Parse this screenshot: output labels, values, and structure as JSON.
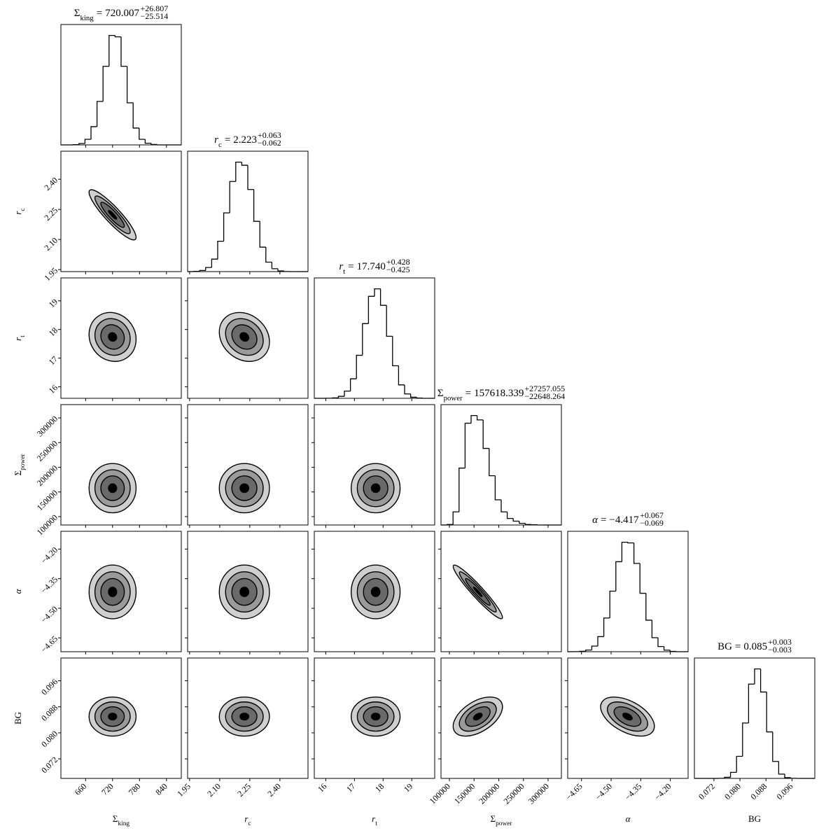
{
  "chart_data": {
    "type": "corner",
    "equals": "=",
    "parameters": [
      {
        "label": "Σ",
        "label_sub": "king",
        "median": 720.007,
        "err_plus": 26.807,
        "err_plus_label": "+26.807",
        "err_minus": 25.514,
        "err_minus_label": "−25.514",
        "lim": [
          605,
          873
        ],
        "ticks": [
          660,
          720,
          780,
          840
        ],
        "bins": [
          605,
          618.4,
          631.8,
          645.2,
          658.6,
          672,
          685.4,
          698.8,
          712.2,
          725.6,
          739,
          752.4,
          765.8,
          779.2,
          792.6,
          806,
          819.4,
          832.8,
          846.2,
          859.6,
          873
        ],
        "counts": [
          0,
          0,
          2,
          10,
          40,
          130,
          310,
          560,
          780,
          770,
          560,
          300,
          120,
          40,
          12,
          3,
          0,
          0,
          0,
          0
        ]
      },
      {
        "label": "r",
        "label_sub": "c",
        "italic": true,
        "median": 2.223,
        "err_plus": 0.063,
        "err_plus_label": "+0.063",
        "err_minus": 0.062,
        "err_minus_label": "−0.062",
        "lim": [
          1.94,
          2.54
        ],
        "ticks": [
          1.95,
          {
            "value": 2.1,
            "label": "2.10"
          },
          2.25,
          {
            "value": 2.4,
            "label": "2.40"
          }
        ],
        "bins": [
          1.94,
          1.97,
          2.0,
          2.03,
          2.06,
          2.09,
          2.12,
          2.15,
          2.18,
          2.21,
          2.24,
          2.27,
          2.3,
          2.33,
          2.36,
          2.39,
          2.42,
          2.45,
          2.48,
          2.51,
          2.54
        ],
        "counts": [
          0,
          2,
          10,
          37,
          112,
          273,
          528,
          810,
          984,
          956,
          738,
          452,
          220,
          85,
          26,
          6,
          1,
          0,
          0,
          0
        ]
      },
      {
        "label": "r",
        "label_sub": "t",
        "italic": true,
        "median": 17.74,
        "median_label": "17.740",
        "err_plus": 0.428,
        "err_plus_label": "+0.428",
        "err_minus": 0.425,
        "err_minus_label": "−0.425",
        "lim": [
          15.6,
          19.8
        ],
        "ticks": [
          16,
          17,
          18,
          19
        ],
        "bins": [
          15.6,
          15.81,
          16.02,
          16.23,
          16.44,
          16.65,
          16.86,
          17.07,
          17.28,
          17.49,
          17.7,
          17.91,
          18.12,
          18.33,
          18.54,
          18.75,
          18.96,
          19.17,
          19.38,
          19.59,
          19.8
        ],
        "counts": [
          0,
          0,
          1,
          4,
          18,
          65,
          177,
          391,
          679,
          927,
          995,
          845,
          564,
          296,
          122,
          40,
          10,
          2,
          0,
          0
        ]
      },
      {
        "label": "Σ",
        "label_sub": "power",
        "median": 157618.339,
        "err_plus": 27257.055,
        "err_plus_label": "+27257.055",
        "err_minus": 22648.264,
        "err_minus_label": "−22648.264",
        "lim": [
          83000,
          327000
        ],
        "ticks": [
          100000,
          150000,
          200000,
          250000,
          300000
        ],
        "bins": [
          83000,
          95200,
          107400,
          119600,
          131800,
          144000,
          156200,
          168400,
          180600,
          192800,
          205000,
          217200,
          229400,
          241600,
          253800,
          266000,
          278200,
          290400,
          302600,
          314800,
          327000
        ],
        "counts": [
          0,
          5,
          120,
          520,
          930,
          1000,
          960,
          700,
          450,
          230,
          120,
          60,
          35,
          15,
          5,
          2,
          0,
          0,
          0,
          0
        ]
      },
      {
        "label": "α",
        "italic": true,
        "median": -4.417,
        "median_label": "−4.417",
        "err_plus": 0.067,
        "err_plus_label": "+0.067",
        "err_minus": 0.069,
        "err_minus_label": "−0.069",
        "lim": [
          -4.72,
          -4.11
        ],
        "ticks": [
          {
            "value": -4.65,
            "label": "−4.65"
          },
          {
            "value": -4.5,
            "label": "−4.50"
          },
          {
            "value": -4.35,
            "label": "−4.35"
          },
          {
            "value": -4.2,
            "label": "−4.20"
          }
        ],
        "bins": [
          -4.72,
          -4.6895,
          -4.659,
          -4.6285,
          -4.598,
          -4.5675,
          -4.537,
          -4.5065,
          -4.476,
          -4.4455,
          -4.415,
          -4.3845,
          -4.354,
          -4.3235,
          -4.293,
          -4.2625,
          -4.232,
          -4.2015,
          -4.171,
          -4.1405,
          -4.11
        ],
        "counts": [
          0,
          1,
          4,
          15,
          50,
          135,
          301,
          541,
          804,
          978,
          972,
          789,
          522,
          282,
          125,
          46,
          14,
          3,
          0,
          0
        ]
      },
      {
        "label": "BG",
        "median": 0.085,
        "err_plus": 0.003,
        "err_plus_label": "+0.003",
        "err_minus": 0.003,
        "err_minus_label": "−0.003",
        "lim": [
          0.066,
          0.103
        ],
        "ticks": [
          0.072,
          {
            "value": 0.08,
            "label": "0.080"
          },
          0.088,
          0.096
        ],
        "bins": [
          0.066,
          0.06785,
          0.0697,
          0.07155,
          0.0734,
          0.07525,
          0.0771,
          0.07895,
          0.0808,
          0.08265,
          0.0845,
          0.08635,
          0.0882,
          0.09005,
          0.0919,
          0.09375,
          0.0956,
          0.09745,
          0.0993,
          0.10115,
          0.103
        ],
        "counts": [
          0,
          0,
          0,
          0,
          1,
          10,
          55,
          201,
          505,
          860,
          998,
          788,
          424,
          155,
          39,
          7,
          1,
          0,
          0,
          0
        ]
      }
    ],
    "correlations": [
      [
        -0.9
      ],
      [
        -0.1,
        -0.2
      ],
      [
        0,
        0,
        0
      ],
      [
        0,
        0,
        0,
        -0.95
      ],
      [
        0,
        0,
        0,
        0.5,
        -0.5
      ]
    ]
  }
}
